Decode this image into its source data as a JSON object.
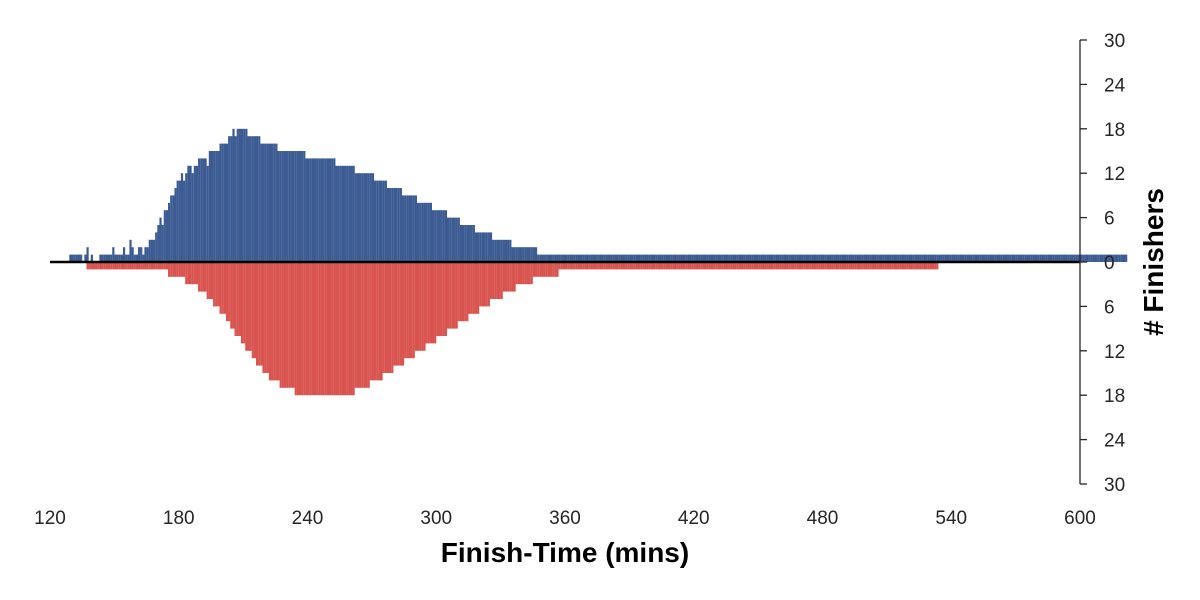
{
  "chart_data": {
    "type": "bar",
    "xlabel": "Finish-Time (mins)",
    "ylabel": "# Finishers",
    "xlim": [
      120,
      600
    ],
    "ylim": [
      -30,
      30
    ],
    "x_ticks": [
      120,
      180,
      240,
      300,
      360,
      420,
      480,
      540,
      600
    ],
    "y_ticks": [
      {
        "value": 30,
        "label": "30"
      },
      {
        "value": 24,
        "label": "24"
      },
      {
        "value": 18,
        "label": "18"
      },
      {
        "value": 12,
        "label": "12"
      },
      {
        "value": 6,
        "label": "6"
      },
      {
        "value": 0,
        "label": "0"
      },
      {
        "value": -6,
        "label": "6"
      },
      {
        "value": -12,
        "label": "12"
      },
      {
        "value": -18,
        "label": "18"
      },
      {
        "value": -24,
        "label": "24"
      },
      {
        "value": -30,
        "label": "30"
      }
    ],
    "grid": false,
    "y_axis_side": "right",
    "bin_width_mins": 1,
    "series": [
      {
        "color": "#3b5b92",
        "direction": "up",
        "start_x": 129,
        "values": [
          1,
          1,
          1,
          1,
          1,
          1,
          0,
          1,
          2,
          0,
          1,
          0,
          0,
          0,
          1,
          1,
          1,
          1,
          1,
          1,
          2,
          1,
          1,
          1,
          1,
          2,
          1,
          1,
          3,
          2,
          1,
          1,
          2,
          2,
          1,
          2,
          2,
          3,
          3,
          3,
          4,
          5,
          6,
          5,
          7,
          7,
          8,
          9,
          9,
          10,
          11,
          11,
          12,
          11,
          12,
          13,
          13,
          12,
          13,
          13,
          14,
          14,
          14,
          14,
          13,
          15,
          15,
          15,
          15,
          15,
          16,
          16,
          16,
          16,
          17,
          17,
          18,
          17,
          18,
          18,
          18,
          18,
          18,
          17,
          17,
          17,
          17,
          17,
          17,
          16,
          16,
          16,
          16,
          16,
          16,
          16,
          16,
          15,
          15,
          15,
          15,
          15,
          15,
          15,
          15,
          15,
          15,
          15,
          15,
          15,
          14,
          14,
          14,
          14,
          14,
          14,
          14,
          14,
          14,
          14,
          14,
          14,
          14,
          14,
          13,
          13,
          13,
          13,
          13,
          13,
          13,
          13,
          13,
          12,
          12,
          12,
          12,
          12,
          12,
          12,
          12,
          12,
          11,
          11,
          11,
          11,
          11,
          11,
          10,
          10,
          10,
          10,
          10,
          10,
          10,
          9,
          9,
          9,
          9,
          9,
          9,
          9,
          8,
          8,
          8,
          8,
          8,
          8,
          8,
          7,
          7,
          7,
          7,
          7,
          7,
          7,
          6,
          6,
          6,
          6,
          6,
          6,
          5,
          5,
          5,
          5,
          5,
          5,
          5,
          4,
          4,
          4,
          4,
          4,
          4,
          4,
          4,
          3,
          3,
          3,
          3,
          3,
          3,
          3,
          3,
          3,
          2,
          2,
          2,
          2,
          2,
          2,
          2,
          2,
          2,
          2,
          2,
          2,
          1,
          1,
          1,
          1,
          1,
          1,
          1,
          1,
          1,
          1,
          1,
          1,
          1,
          1,
          1,
          1,
          1,
          1,
          1,
          1,
          1,
          1,
          1,
          1,
          1,
          1,
          1,
          1,
          1,
          1,
          1,
          1,
          1,
          1,
          1,
          1,
          1,
          1,
          1,
          1,
          1,
          1,
          1,
          1,
          1,
          1,
          1,
          1,
          1,
          1,
          1,
          1,
          1,
          1,
          1,
          1,
          1,
          1,
          1,
          1,
          1,
          1,
          1,
          1,
          1,
          1,
          1,
          1,
          1,
          1,
          1,
          1,
          1,
          1,
          1,
          1,
          1,
          1,
          1,
          1,
          1,
          1,
          1,
          1,
          1,
          1,
          1,
          1,
          1,
          1,
          1,
          1,
          1,
          1,
          1,
          1,
          1,
          1,
          1,
          1,
          1,
          1,
          1,
          1,
          1,
          1,
          1,
          1,
          1,
          1,
          1,
          1,
          1,
          1,
          1,
          1,
          1,
          1,
          1,
          1,
          1,
          1,
          1,
          1,
          1,
          1,
          1,
          1,
          1,
          1,
          1,
          1,
          1,
          1,
          1,
          1,
          1,
          1,
          1,
          1,
          1,
          1,
          1,
          1,
          1,
          1,
          1,
          1,
          1,
          1,
          1,
          1,
          1,
          1,
          1,
          1,
          1,
          1,
          1,
          1,
          1,
          1,
          1,
          1,
          1,
          1,
          1,
          1,
          1,
          1,
          1,
          1,
          1,
          1,
          1,
          1,
          1,
          1,
          1,
          1,
          1,
          1,
          1,
          1,
          1,
          1,
          1,
          1,
          1,
          1,
          1,
          1,
          1,
          1,
          1,
          1,
          1,
          1,
          1,
          1,
          1,
          1,
          1,
          1,
          1,
          1,
          1,
          1,
          1,
          1,
          1,
          1,
          1,
          1,
          1,
          1,
          1,
          1,
          1,
          1,
          1,
          1,
          1,
          1,
          1,
          1,
          1,
          1,
          1,
          1,
          1,
          1,
          1,
          1,
          1,
          1,
          1,
          1,
          1,
          1,
          1,
          1,
          1,
          1,
          1,
          1,
          1,
          1,
          1,
          1,
          1,
          1,
          1,
          1,
          1,
          1,
          1,
          1,
          1,
          1,
          1,
          1,
          1,
          1,
          1,
          1,
          1,
          1,
          1,
          1,
          1,
          1,
          1,
          1,
          1
        ]
      },
      {
        "color": "#d9534f",
        "direction": "down",
        "start_x": 137,
        "values": [
          1,
          1,
          1,
          1,
          1,
          1,
          1,
          1,
          1,
          1,
          1,
          1,
          1,
          1,
          1,
          1,
          1,
          1,
          1,
          1,
          1,
          1,
          1,
          1,
          1,
          1,
          1,
          1,
          1,
          1,
          1,
          1,
          1,
          1,
          1,
          1,
          1,
          1,
          2,
          2,
          2,
          2,
          2,
          2,
          2,
          2,
          3,
          3,
          3,
          3,
          3,
          3,
          4,
          4,
          4,
          4,
          5,
          5,
          5,
          6,
          6,
          6,
          7,
          7,
          7,
          8,
          8,
          9,
          9,
          10,
          10,
          10,
          11,
          11,
          12,
          12,
          12,
          13,
          13,
          14,
          14,
          14,
          15,
          15,
          15,
          16,
          16,
          16,
          16,
          16,
          17,
          17,
          17,
          17,
          17,
          17,
          17,
          18,
          18,
          18,
          18,
          18,
          18,
          18,
          18,
          18,
          18,
          18,
          18,
          18,
          18,
          18,
          18,
          18,
          18,
          18,
          18,
          18,
          18,
          18,
          18,
          18,
          18,
          18,
          18,
          17,
          17,
          17,
          17,
          17,
          17,
          17,
          16,
          16,
          16,
          16,
          16,
          16,
          15,
          15,
          15,
          15,
          15,
          14,
          14,
          14,
          14,
          14,
          13,
          13,
          13,
          13,
          13,
          12,
          12,
          12,
          12,
          12,
          11,
          11,
          11,
          11,
          11,
          10,
          10,
          10,
          10,
          10,
          9,
          9,
          9,
          9,
          9,
          8,
          8,
          8,
          8,
          8,
          7,
          7,
          7,
          7,
          7,
          6,
          6,
          6,
          6,
          6,
          5,
          5,
          5,
          5,
          5,
          5,
          4,
          4,
          4,
          4,
          4,
          4,
          3,
          3,
          3,
          3,
          3,
          3,
          3,
          3,
          2,
          2,
          2,
          2,
          2,
          2,
          2,
          2,
          2,
          2,
          2,
          2,
          1,
          1,
          1,
          1,
          1,
          1,
          1,
          1,
          1,
          1,
          1,
          1,
          1,
          1,
          1,
          1,
          1,
          1,
          1,
          1,
          1,
          1,
          1,
          1,
          1,
          1,
          1,
          1,
          1,
          1,
          1,
          1,
          1,
          1,
          1,
          1,
          1,
          1,
          1,
          1,
          1,
          1,
          1,
          1,
          1,
          1,
          1,
          1,
          1,
          1,
          1,
          1,
          1,
          1,
          1,
          1,
          1,
          1,
          1,
          1,
          1,
          1,
          1,
          1,
          1,
          1,
          1,
          1,
          1,
          1,
          1,
          1,
          1,
          1,
          1,
          1,
          1,
          1,
          1,
          1,
          1,
          1,
          1,
          1,
          1,
          1,
          1,
          1,
          1,
          1,
          1,
          1,
          1,
          1,
          1,
          1,
          1,
          1,
          1,
          1,
          1,
          1,
          1,
          1,
          1,
          1,
          1,
          1,
          1,
          1,
          1,
          1,
          1,
          1,
          1,
          1,
          1,
          1,
          1,
          1,
          1,
          1,
          1,
          1,
          1,
          1,
          1,
          1,
          1,
          1,
          1,
          1,
          1,
          1,
          1,
          1,
          1,
          1,
          1,
          1,
          1,
          1,
          1,
          1,
          1,
          1,
          1,
          1,
          1,
          1,
          1,
          1,
          1,
          1,
          1,
          1,
          1,
          1,
          1,
          1,
          1,
          1,
          1,
          1,
          1,
          1,
          1,
          1,
          1,
          1,
          1,
          1,
          1,
          1,
          1,
          1,
          1
        ]
      }
    ]
  }
}
